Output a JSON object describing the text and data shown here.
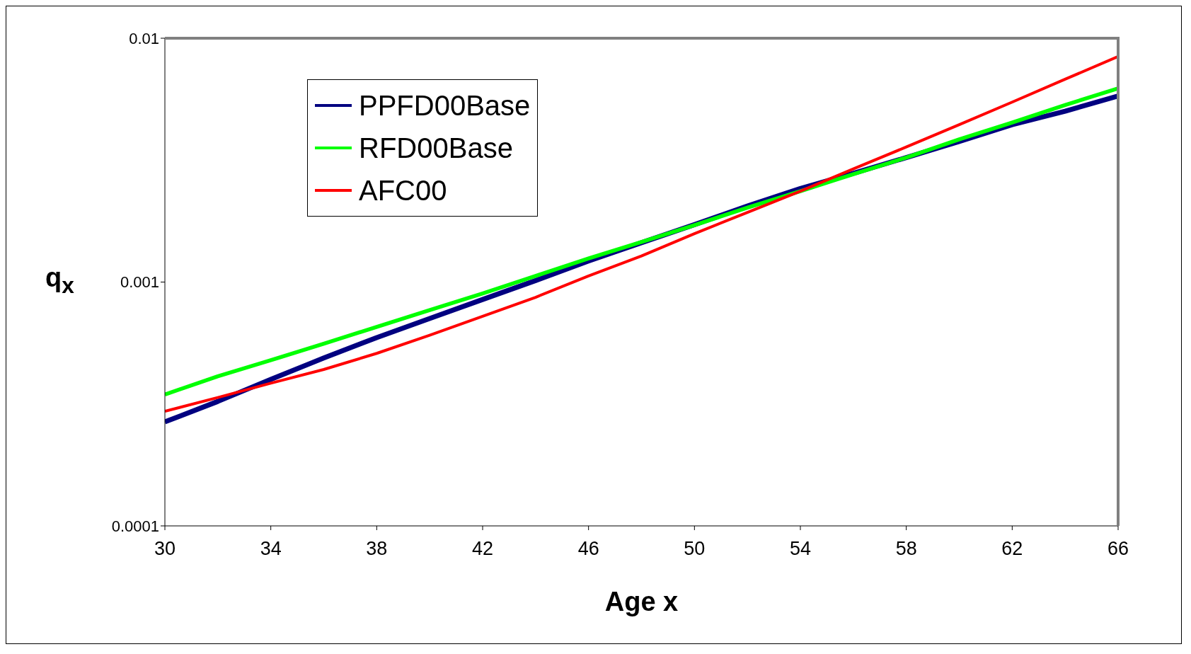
{
  "chart_data": {
    "type": "line",
    "xlabel": "Age x",
    "ylabel": "q$_{x}$",
    "x": [
      30,
      32,
      34,
      36,
      38,
      40,
      42,
      44,
      46,
      48,
      50,
      52,
      54,
      56,
      58,
      60,
      62,
      64,
      66
    ],
    "series": [
      {
        "name": "PPFD00Base",
        "color": "#000080",
        "values": [
          0.000267,
          0.000324,
          0.000399,
          0.000488,
          0.000592,
          0.000709,
          0.000848,
          0.001014,
          0.00122,
          0.00145,
          0.00172,
          0.00205,
          0.00242,
          0.00279,
          0.00324,
          0.00377,
          0.00442,
          0.00502,
          0.0058
        ]
      },
      {
        "name": "RFD00Base",
        "color": "#00ff00",
        "values": [
          0.000346,
          0.000411,
          0.000478,
          0.000559,
          0.000655,
          0.000767,
          0.000898,
          0.00106,
          0.00125,
          0.00146,
          0.00171,
          0.00202,
          0.00236,
          0.00277,
          0.00324,
          0.00385,
          0.00451,
          0.00532,
          0.00623
        ]
      },
      {
        "name": "AFC00",
        "color": "#ff0000",
        "values": [
          0.000295,
          0.000336,
          0.000385,
          0.000438,
          0.00051,
          0.000605,
          0.000724,
          0.000866,
          0.00106,
          0.00128,
          0.00158,
          0.00193,
          0.00236,
          0.00291,
          0.00358,
          0.00442,
          0.00547,
          0.00679,
          0.00842
        ]
      }
    ],
    "xlim": [
      30,
      66
    ],
    "xticks": [
      30,
      34,
      38,
      42,
      46,
      50,
      54,
      58,
      62,
      66
    ],
    "log": "y",
    "ylim": [
      0.0001,
      0.01
    ],
    "yticks": [
      0.0001,
      0.001,
      0.01
    ],
    "grid": false,
    "legend": "top left",
    "marker": "none",
    "line_style": "solid"
  }
}
